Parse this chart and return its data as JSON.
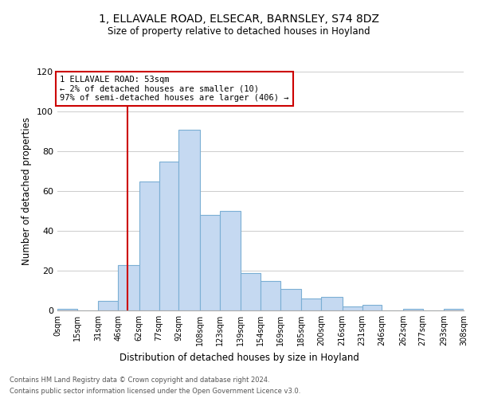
{
  "title1": "1, ELLAVALE ROAD, ELSECAR, BARNSLEY, S74 8DZ",
  "title2": "Size of property relative to detached houses in Hoyland",
  "xlabel": "Distribution of detached houses by size in Hoyland",
  "ylabel": "Number of detached properties",
  "bar_color": "#c5d9f1",
  "bar_edge_color": "#7bafd4",
  "bins": [
    0,
    15,
    31,
    46,
    62,
    77,
    92,
    108,
    123,
    139,
    154,
    169,
    185,
    200,
    216,
    231,
    246,
    262,
    277,
    293,
    308
  ],
  "counts": [
    1,
    0,
    5,
    23,
    65,
    75,
    91,
    48,
    50,
    19,
    15,
    11,
    6,
    7,
    2,
    3,
    0,
    1,
    0,
    1
  ],
  "tick_labels": [
    "0sqm",
    "15sqm",
    "31sqm",
    "46sqm",
    "62sqm",
    "77sqm",
    "92sqm",
    "108sqm",
    "123sqm",
    "139sqm",
    "154sqm",
    "169sqm",
    "185sqm",
    "200sqm",
    "216sqm",
    "231sqm",
    "246sqm",
    "262sqm",
    "277sqm",
    "293sqm",
    "308sqm"
  ],
  "vline_x": 53,
  "vline_color": "#cc0000",
  "annotation_text": "1 ELLAVALE ROAD: 53sqm\n← 2% of detached houses are smaller (10)\n97% of semi-detached houses are larger (406) →",
  "annotation_box_color": "#ffffff",
  "annotation_box_edge": "#cc0000",
  "ylim": [
    0,
    120
  ],
  "yticks": [
    0,
    20,
    40,
    60,
    80,
    100,
    120
  ],
  "footer1": "Contains HM Land Registry data © Crown copyright and database right 2024.",
  "footer2": "Contains public sector information licensed under the Open Government Licence v3.0.",
  "background_color": "#ffffff",
  "grid_color": "#cccccc"
}
